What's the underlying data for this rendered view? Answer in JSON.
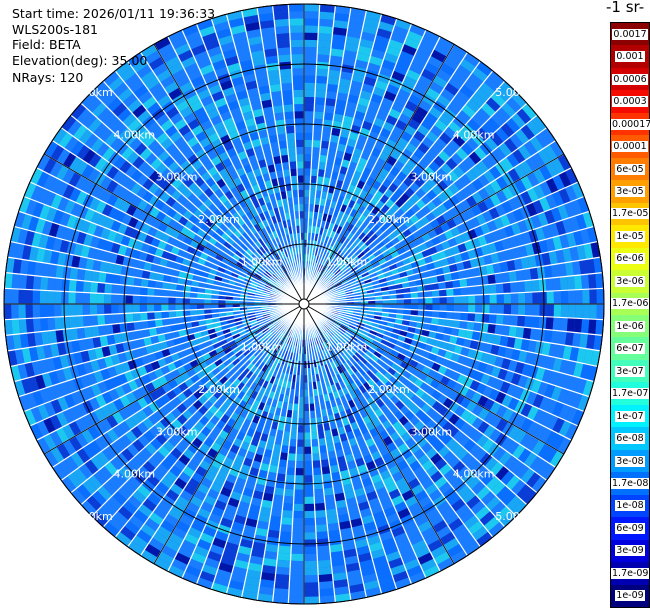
{
  "info": {
    "start_time": "Start time: 2026/01/11 19:36:33",
    "instrument": "WLS200s-181",
    "field": "Field: BETA",
    "elevation": "Elevation(deg): 35.00",
    "nrays": "NRays: 120"
  },
  "colorbar": {
    "title": "-1 sr-",
    "labels": [
      "0.0017",
      "0.001",
      "0.0006",
      "0.0003",
      "0.00017",
      "0.0001",
      "6e-05",
      "3e-05",
      "1.7e-05",
      "1e-05",
      "6e-06",
      "3e-06",
      "1.7e-06",
      "1e-06",
      "6e-07",
      "3e-07",
      "1.7e-07",
      "1e-07",
      "6e-08",
      "3e-08",
      "1.7e-08",
      "1e-08",
      "6e-09",
      "3e-09",
      "1.7e-09",
      "1e-09"
    ],
    "colors": [
      "#8b0000",
      "#b20000",
      "#d40000",
      "#f50b00",
      "#ff3300",
      "#ff5a00",
      "#ff7d00",
      "#ffa000",
      "#ffc400",
      "#ffe800",
      "#ecff12",
      "#caff34",
      "#a8ff56",
      "#86ff78",
      "#64ff9a",
      "#43ffbb",
      "#21ffdd",
      "#00f2ff",
      "#00c8ff",
      "#009cff",
      "#0070ff",
      "#0044ff",
      "#0018ff",
      "#0000de",
      "#0000b0",
      "#00007f"
    ]
  },
  "map": {
    "n_rays": 120,
    "range_rings_km": [
      "1.00km",
      "2.00km",
      "3.00km",
      "4.00km",
      "5.00km"
    ],
    "palette": {
      "background": "#0a6eff",
      "dominant": "#1a7dff",
      "light": "#19a6f5",
      "cyan": "#1cc8f0",
      "dark": "#0a3cd6",
      "navy": "#0016a8"
    }
  }
}
